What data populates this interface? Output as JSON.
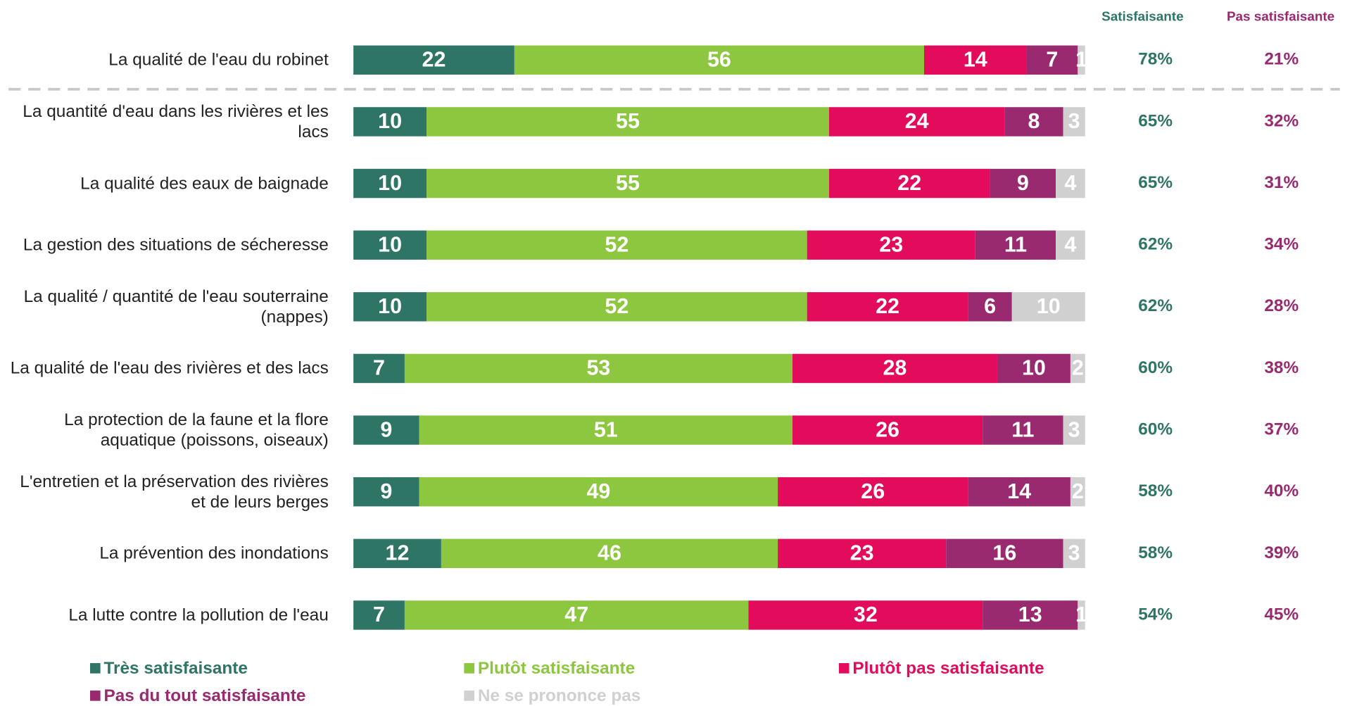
{
  "chart_data": {
    "type": "stacked-bar-horizontal",
    "categories": [
      "La qualité de l'eau du robinet",
      "La quantité d'eau dans les rivières et les lacs",
      "La qualité des eaux de baignade",
      "La gestion des situations de sécheresse",
      "La qualité / quantité de l'eau souterraine (nappes)",
      "La qualité de l'eau des rivières et des lacs",
      "La protection de la faune et la flore aquatique (poissons, oiseaux)",
      "L'entretien et la préservation des rivières et de leurs berges",
      "La prévention des inondations",
      "La lutte contre la pollution de l'eau"
    ],
    "series": [
      {
        "name": "Très satisfaisante",
        "color": "#2e7566",
        "values": [
          22,
          10,
          10,
          10,
          10,
          7,
          9,
          9,
          12,
          7
        ]
      },
      {
        "name": "Plutôt satisfaisante",
        "color": "#8dc63f",
        "values": [
          56,
          55,
          55,
          52,
          52,
          53,
          51,
          49,
          46,
          47
        ]
      },
      {
        "name": "Plutôt pas satisfaisante",
        "color": "#e30b5c",
        "values": [
          14,
          24,
          22,
          23,
          22,
          28,
          26,
          26,
          23,
          32
        ]
      },
      {
        "name": "Pas du tout satisfaisante",
        "color": "#992a6f",
        "values": [
          7,
          8,
          9,
          11,
          6,
          10,
          11,
          14,
          16,
          13
        ]
      },
      {
        "name": "Ne se prononce pas",
        "color": "#d0d0d0",
        "values": [
          1,
          3,
          4,
          4,
          10,
          2,
          3,
          2,
          3,
          1
        ]
      }
    ],
    "xlim": [
      0,
      100
    ],
    "summary": [
      {
        "name": "Satisfaisante",
        "color": "#2e7566",
        "values": [
          78,
          65,
          65,
          62,
          62,
          60,
          60,
          58,
          58,
          54
        ],
        "value_labels": [
          "78%",
          "65%",
          "65%",
          "62%",
          "62%",
          "60%",
          "60%",
          "58%",
          "58%",
          "54%"
        ]
      },
      {
        "name": "Pas satisfaisante",
        "color": "#992a6f",
        "values": [
          21,
          32,
          31,
          34,
          28,
          38,
          37,
          40,
          39,
          45
        ],
        "value_labels": [
          "21%",
          "32%",
          "31%",
          "34%",
          "28%",
          "38%",
          "37%",
          "40%",
          "39%",
          "45%"
        ]
      }
    ],
    "legend": "bottom"
  }
}
